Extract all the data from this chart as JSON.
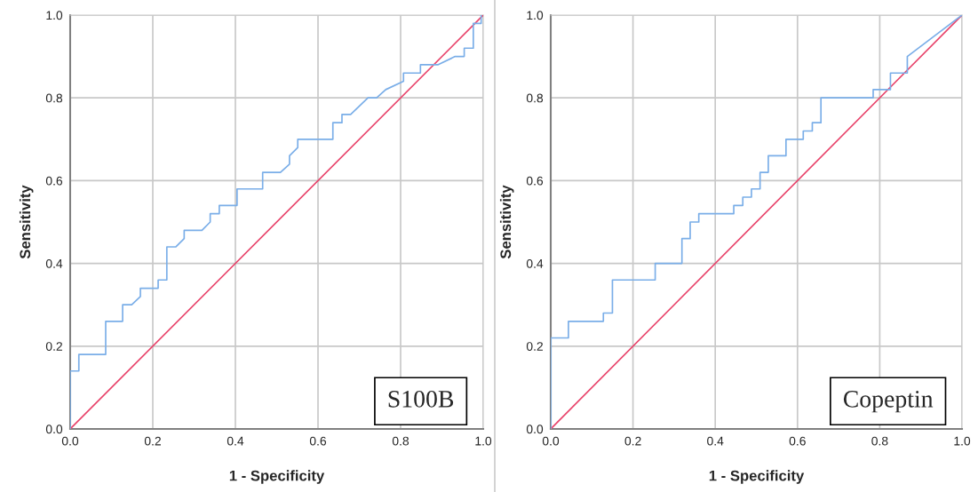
{
  "chart_data": [
    {
      "type": "line",
      "xlabel": "1 - Specificity",
      "ylabel": "Sensitivity",
      "xlim": [
        0,
        1
      ],
      "ylim": [
        0,
        1
      ],
      "xticks": [
        {
          "value": 0,
          "label": "0.0"
        },
        {
          "value": 0.2,
          "label": "0.2"
        },
        {
          "value": 0.4,
          "label": "0.4"
        },
        {
          "value": 0.6,
          "label": "0.6"
        },
        {
          "value": 0.8,
          "label": "0.8"
        },
        {
          "value": 1,
          "label": "1.0"
        }
      ],
      "yticks": [
        {
          "value": 0,
          "label": "0.0"
        },
        {
          "value": 0.2,
          "label": "0.2"
        },
        {
          "value": 0.4,
          "label": "0.4"
        },
        {
          "value": 0.6,
          "label": "0.6"
        },
        {
          "value": 0.8,
          "label": "0.8"
        },
        {
          "value": 1,
          "label": "1.0"
        }
      ],
      "grid": true,
      "marker": "none",
      "line_style": "solid",
      "series": [
        {
          "color": "#7aaee8",
          "x": [
            0,
            0,
            0.021,
            0.021,
            0.086,
            0.086,
            0.127,
            0.127,
            0.149,
            0.17,
            0.17,
            0.213,
            0.213,
            0.234,
            0.234,
            0.256,
            0.276,
            0.276,
            0.319,
            0.339,
            0.339,
            0.361,
            0.361,
            0.404,
            0.404,
            0.466,
            0.466,
            0.509,
            0.531,
            0.531,
            0.551,
            0.551,
            0.636,
            0.636,
            0.658,
            0.658,
            0.679,
            0.721,
            0.742,
            0.764,
            0.807,
            0.807,
            0.848,
            0.848,
            0.89,
            0.932,
            0.954,
            0.954,
            0.976,
            0.976,
            0.995,
            0.995
          ],
          "values": [
            0,
            0.14,
            0.14,
            0.18,
            0.18,
            0.26,
            0.26,
            0.3,
            0.3,
            0.32,
            0.34,
            0.34,
            0.36,
            0.36,
            0.44,
            0.44,
            0.46,
            0.48,
            0.48,
            0.5,
            0.52,
            0.52,
            0.54,
            0.54,
            0.58,
            0.58,
            0.62,
            0.62,
            0.64,
            0.66,
            0.68,
            0.7,
            0.7,
            0.74,
            0.74,
            0.76,
            0.76,
            0.8,
            0.8,
            0.82,
            0.84,
            0.86,
            0.86,
            0.88,
            0.88,
            0.9,
            0.9,
            0.92,
            0.92,
            0.98,
            0.98,
            1
          ]
        },
        {
          "color": "#e8436a",
          "x": [
            0,
            1
          ],
          "values": [
            0,
            1
          ]
        }
      ],
      "annotations": [
        "S100B"
      ]
    },
    {
      "type": "line",
      "xlabel": "1 - Specificity",
      "ylabel": "Sensitivity",
      "xlim": [
        0,
        1
      ],
      "ylim": [
        0,
        1
      ],
      "xticks": [
        {
          "value": 0,
          "label": "0.0"
        },
        {
          "value": 0.2,
          "label": "0.2"
        },
        {
          "value": 0.4,
          "label": "0.4"
        },
        {
          "value": 0.6,
          "label": "0.6"
        },
        {
          "value": 0.8,
          "label": "0.8"
        },
        {
          "value": 1,
          "label": "1.0"
        }
      ],
      "yticks": [
        {
          "value": 0,
          "label": "0.0"
        },
        {
          "value": 0.2,
          "label": "0.2"
        },
        {
          "value": 0.4,
          "label": "0.4"
        },
        {
          "value": 0.6,
          "label": "0.6"
        },
        {
          "value": 0.8,
          "label": "0.8"
        },
        {
          "value": 1,
          "label": "1.0"
        }
      ],
      "grid": true,
      "marker": "none",
      "line_style": "solid",
      "series": [
        {
          "color": "#7aaee8",
          "x": [
            0,
            0,
            0.043,
            0.043,
            0.128,
            0.128,
            0.15,
            0.15,
            0.254,
            0.254,
            0.319,
            0.319,
            0.339,
            0.339,
            0.36,
            0.36,
            0.445,
            0.445,
            0.467,
            0.467,
            0.488,
            0.488,
            0.509,
            0.509,
            0.529,
            0.529,
            0.572,
            0.572,
            0.614,
            0.614,
            0.636,
            0.636,
            0.657,
            0.657,
            0.784,
            0.784,
            0.826,
            0.826,
            0.867,
            0.867,
            1
          ],
          "values": [
            0,
            0.22,
            0.22,
            0.26,
            0.26,
            0.28,
            0.28,
            0.36,
            0.36,
            0.4,
            0.4,
            0.46,
            0.46,
            0.5,
            0.5,
            0.52,
            0.52,
            0.54,
            0.54,
            0.56,
            0.56,
            0.58,
            0.58,
            0.62,
            0.62,
            0.66,
            0.66,
            0.7,
            0.7,
            0.72,
            0.72,
            0.74,
            0.74,
            0.8,
            0.8,
            0.82,
            0.82,
            0.86,
            0.86,
            0.9,
            1
          ]
        },
        {
          "color": "#e8436a",
          "x": [
            0,
            1
          ],
          "values": [
            0,
            1
          ]
        }
      ],
      "annotations": [
        "Copeptin"
      ]
    }
  ]
}
